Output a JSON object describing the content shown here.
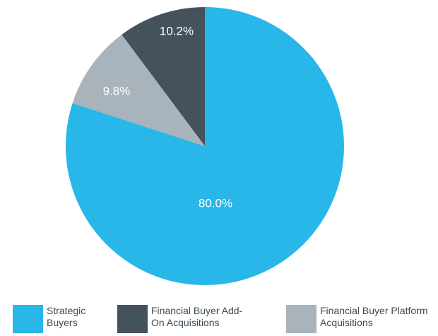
{
  "chart_data": {
    "type": "pie",
    "categories": [
      "Strategic Buyers",
      "Financial Buyer Add-On Acquisitions",
      "Financial Buyer Platform Acquisitions"
    ],
    "values": [
      80.0,
      10.2,
      9.8
    ],
    "value_labels": [
      "80.0%",
      "10.2%",
      "9.8%"
    ],
    "colors": [
      "#29b6e9",
      "#44525c",
      "#a8b3bb"
    ]
  }
}
